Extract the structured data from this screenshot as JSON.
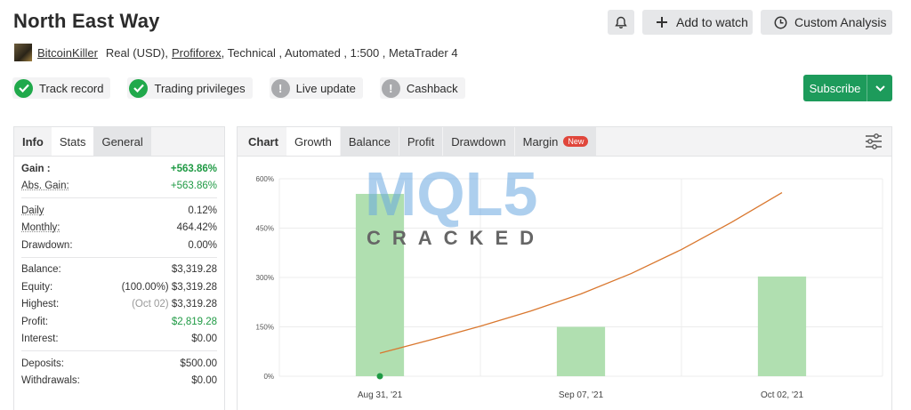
{
  "header": {
    "title": "North East Way",
    "add_to_watch": "Add to watch",
    "custom_analysis": "Custom Analysis"
  },
  "meta": {
    "author": "BitcoinKiller",
    "account": "Real (USD),",
    "broker": "Profiforex",
    "rest": ", Technical , Automated , 1:500 , MetaTrader 4"
  },
  "badges": [
    {
      "label": "Track record",
      "status": "ok"
    },
    {
      "label": "Trading privileges",
      "status": "ok"
    },
    {
      "label": "Live update",
      "status": "warn"
    },
    {
      "label": "Cashback",
      "status": "warn"
    }
  ],
  "subscribe": {
    "label": "Subscribe"
  },
  "stats": {
    "tabs": {
      "info": "Info",
      "stats": "Stats",
      "general": "General"
    },
    "gain_label": "Gain :",
    "gain": "+563.86%",
    "abs_gain_label": "Abs. Gain:",
    "abs_gain": "+563.86%",
    "daily_label": "Daily",
    "daily": "0.12%",
    "monthly_label": "Monthly:",
    "monthly": "464.42%",
    "drawdown_label": "Drawdown:",
    "drawdown": "0.00%",
    "balance_label": "Balance:",
    "balance": "$3,319.28",
    "equity_label": "Equity:",
    "equity_pct": "(100.00%)",
    "equity": "$3,319.28",
    "highest_label": "Highest:",
    "highest_date": "(Oct 02)",
    "highest": "$3,319.28",
    "profit_label": "Profit:",
    "profit": "$2,819.28",
    "interest_label": "Interest:",
    "interest": "$0.00",
    "deposits_label": "Deposits:",
    "deposits": "$500.00",
    "withdrawals_label": "Withdrawals:",
    "withdrawals": "$0.00"
  },
  "chart_tabs": {
    "chart": "Chart",
    "growth": "Growth",
    "balance": "Balance",
    "profit": "Profit",
    "drawdown": "Drawdown",
    "margin": "Margin",
    "new_badge": "New"
  },
  "watermark": {
    "top": "MQL5",
    "bottom": "CRACKED"
  },
  "colors": {
    "accent": "#1d9b5b",
    "bar": "#b0dfb0",
    "line": "#d9772e",
    "gain": "#1f9a44"
  },
  "chart_data": {
    "type": "bar",
    "categories": [
      "Aug 31, '21",
      "Sep 07, '21",
      "Oct 02, '21"
    ],
    "bar_values": [
      554,
      150,
      303
    ],
    "line": {
      "x": [
        0,
        0.5,
        1.0,
        1.5,
        2.0,
        2.5,
        3.0,
        3.5,
        4.0
      ],
      "y": [
        70,
        110,
        152,
        198,
        250,
        312,
        385,
        468,
        558
      ]
    },
    "start_point": {
      "x": 0,
      "y": 0
    },
    "yticks": [
      0,
      150,
      300,
      450,
      600
    ],
    "ytick_labels": [
      "0%",
      "150%",
      "300%",
      "450%",
      "600%"
    ],
    "ylim": [
      0,
      600
    ],
    "grid": true
  }
}
